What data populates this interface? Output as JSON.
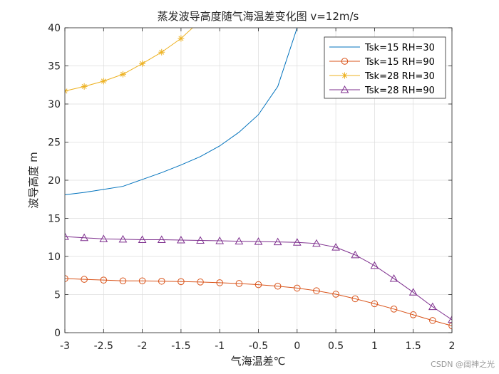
{
  "chart_data": {
    "type": "line",
    "title": "蒸发波导高度随气海温差变化图 v=12m/s",
    "xlabel": "气海温差℃",
    "ylabel": "波导高度 m",
    "xlim": [
      -3,
      2
    ],
    "ylim": [
      0,
      40
    ],
    "xticks": [
      "-3",
      "-2.5",
      "-2",
      "-1.5",
      "-1",
      "-0.5",
      "0",
      "0.5",
      "1",
      "1.5",
      "2"
    ],
    "yticks": [
      "0",
      "5",
      "10",
      "15",
      "20",
      "25",
      "30",
      "35",
      "40"
    ],
    "grid": true,
    "legend_location": "top-right",
    "series": [
      {
        "name": "Tsk=15 RH=30",
        "color": "#0072bd",
        "marker": "none",
        "x": [
          -3,
          -2.75,
          -2.5,
          -2.25,
          -2,
          -1.75,
          -1.5,
          -1.25,
          -1,
          -0.75,
          -0.5,
          -0.25,
          0
        ],
        "y": [
          18.1,
          18.4,
          18.8,
          19.2,
          20.1,
          21.0,
          22.0,
          23.1,
          24.5,
          26.3,
          28.6,
          32.3,
          40
        ]
      },
      {
        "name": "Tsk=15 RH=90",
        "color": "#d95319",
        "marker": "circle",
        "x": [
          -3,
          -2.75,
          -2.5,
          -2.25,
          -2,
          -1.75,
          -1.5,
          -1.25,
          -1,
          -0.75,
          -0.5,
          -0.25,
          0,
          0.25,
          0.5,
          0.75,
          1,
          1.25,
          1.5,
          1.75,
          2
        ],
        "y": [
          7.1,
          7.0,
          6.9,
          6.8,
          6.8,
          6.75,
          6.7,
          6.65,
          6.55,
          6.45,
          6.3,
          6.1,
          5.85,
          5.5,
          5.05,
          4.45,
          3.8,
          3.1,
          2.35,
          1.6,
          0.9
        ]
      },
      {
        "name": "Tsk=28 RH=30",
        "color": "#edb120",
        "marker": "star",
        "x": [
          -3,
          -2.75,
          -2.5,
          -2.25,
          -2,
          -1.75,
          -1.5,
          -1.35
        ],
        "y": [
          31.7,
          32.3,
          33.0,
          33.9,
          35.3,
          36.8,
          38.6,
          40
        ]
      },
      {
        "name": "Tsk=28 RH=90",
        "color": "#7e2f8e",
        "marker": "triangle",
        "x": [
          -3,
          -2.75,
          -2.5,
          -2.25,
          -2,
          -1.75,
          -1.5,
          -1.25,
          -1,
          -0.75,
          -0.5,
          -0.25,
          0,
          0.25,
          0.5,
          0.75,
          1,
          1.25,
          1.5,
          1.75,
          2
        ],
        "y": [
          12.6,
          12.45,
          12.3,
          12.25,
          12.2,
          12.2,
          12.15,
          12.1,
          12.05,
          12.0,
          11.95,
          11.9,
          11.85,
          11.7,
          11.2,
          10.2,
          8.8,
          7.1,
          5.3,
          3.4,
          1.7
        ]
      }
    ]
  },
  "watermark": "CSDN @阔神之光"
}
